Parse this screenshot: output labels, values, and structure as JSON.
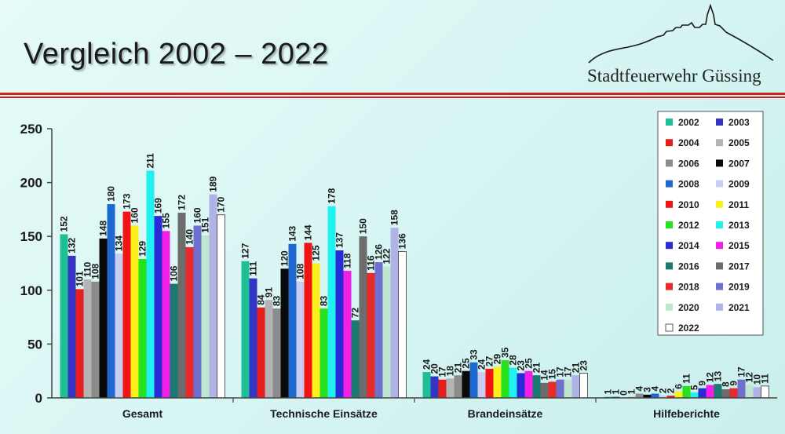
{
  "header": {
    "title": "Vergleich 2002 – 2022",
    "organization": "Stadtfeuerwehr Güssing"
  },
  "colors": {
    "divider_red": "#d32020",
    "axis": "#444444",
    "grid": "#ffffff"
  },
  "chart_data": {
    "type": "bar",
    "categories": [
      "Gesamt",
      "Technische Einsätze",
      "Brandeinsätze",
      "Hilfeberichte"
    ],
    "ylim": [
      0,
      250
    ],
    "yticks": [
      0,
      50,
      100,
      150,
      200,
      250
    ],
    "grid": false,
    "legend_position": "top-right",
    "series": [
      {
        "name": "2002",
        "color": "#1fbf96",
        "values": [
          152,
          127,
          24,
          1
        ]
      },
      {
        "name": "2003",
        "color": "#3336c4",
        "values": [
          132,
          111,
          20,
          1
        ]
      },
      {
        "name": "2004",
        "color": "#e81d1d",
        "values": [
          101,
          84,
          17,
          0
        ]
      },
      {
        "name": "2005",
        "color": "#b4b4b4",
        "values": [
          110,
          91,
          18,
          1
        ]
      },
      {
        "name": "2006",
        "color": "#8c8c8c",
        "values": [
          108,
          83,
          21,
          4
        ]
      },
      {
        "name": "2007",
        "color": "#0a0a0a",
        "values": [
          148,
          120,
          25,
          3
        ]
      },
      {
        "name": "2008",
        "color": "#1f68cf",
        "values": [
          180,
          143,
          33,
          4
        ]
      },
      {
        "name": "2009",
        "color": "#c9cdf2",
        "values": [
          134,
          108,
          24,
          2
        ]
      },
      {
        "name": "2010",
        "color": "#f01414",
        "values": [
          173,
          144,
          27,
          2
        ]
      },
      {
        "name": "2011",
        "color": "#fbf01a",
        "values": [
          160,
          125,
          29,
          6
        ]
      },
      {
        "name": "2012",
        "color": "#27e11e",
        "values": [
          129,
          83,
          35,
          11
        ]
      },
      {
        "name": "2013",
        "color": "#1ff0f0",
        "values": [
          211,
          178,
          28,
          5
        ]
      },
      {
        "name": "2014",
        "color": "#2a2ad6",
        "values": [
          169,
          137,
          23,
          9
        ]
      },
      {
        "name": "2015",
        "color": "#f21fe6",
        "values": [
          155,
          118,
          25,
          12
        ]
      },
      {
        "name": "2016",
        "color": "#1a7a72",
        "values": [
          106,
          72,
          21,
          13
        ]
      },
      {
        "name": "2017",
        "color": "#6c6c6c",
        "values": [
          172,
          150,
          14,
          8
        ]
      },
      {
        "name": "2018",
        "color": "#e82a2a",
        "values": [
          140,
          116,
          15,
          9
        ]
      },
      {
        "name": "2019",
        "color": "#6f6fcf",
        "values": [
          160,
          126,
          17,
          17
        ]
      },
      {
        "name": "2020",
        "color": "#bfe6cf",
        "values": [
          151,
          122,
          17,
          12
        ]
      },
      {
        "name": "2021",
        "color": "#b0b3e6",
        "values": [
          189,
          158,
          21,
          10
        ]
      },
      {
        "name": "2022",
        "color": "#ffffff",
        "values": [
          170,
          136,
          23,
          11
        ]
      }
    ]
  }
}
